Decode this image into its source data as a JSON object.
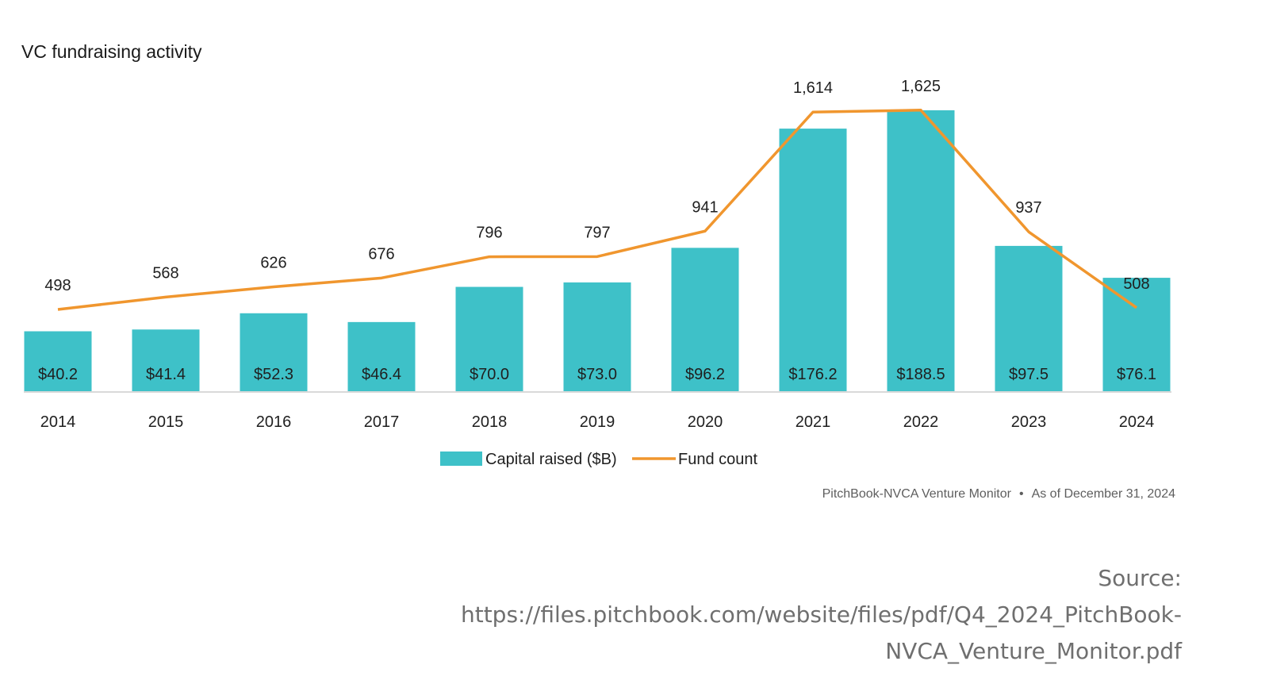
{
  "chart_data": {
    "type": "bar",
    "title": "VC fundraising activity",
    "categories": [
      "2014",
      "2015",
      "2016",
      "2017",
      "2018",
      "2019",
      "2020",
      "2021",
      "2022",
      "2023",
      "2024"
    ],
    "series": [
      {
        "name": "Capital raised ($B)",
        "kind": "bar",
        "color": "#3ec1c8",
        "values": [
          40.2,
          41.4,
          52.3,
          46.4,
          70.0,
          73.0,
          96.2,
          176.2,
          188.5,
          97.5,
          76.1
        ],
        "labels": [
          "$40.2",
          "$41.4",
          "$52.3",
          "$46.4",
          "$70.0",
          "$73.0",
          "$96.2",
          "$176.2",
          "$188.5",
          "$97.5",
          "$76.1"
        ]
      },
      {
        "name": "Fund count",
        "kind": "line",
        "color": "#f0962e",
        "values": [
          498,
          568,
          626,
          676,
          796,
          797,
          941,
          1614,
          1625,
          937,
          508
        ],
        "labels": [
          "498",
          "568",
          "626",
          "676",
          "796",
          "797",
          "941",
          "1,614",
          "1,625",
          "937",
          "508"
        ]
      }
    ],
    "legend_position": "bottom-center",
    "grid": false
  },
  "source_note": {
    "publisher": "PitchBook-NVCA Venture Monitor",
    "separator": "•",
    "as_of": "As of December 31, 2024"
  },
  "footer": {
    "label": "Source:",
    "url_line1": "https://files.pitchbook.com/website/files/pdf/Q4_2024_PitchBook-",
    "url_line2": "NVCA_Venture_Monitor.pdf"
  }
}
